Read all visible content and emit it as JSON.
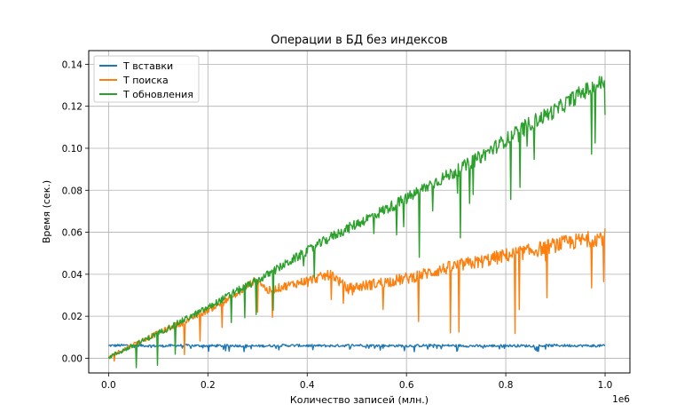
{
  "chart_data": {
    "type": "line",
    "title": "Операции в БД без индексов",
    "xlabel": "Количество записей (млн.)",
    "ylabel": "Время (сек.)",
    "x_offset_text": "1e6",
    "xlim": [
      -40000,
      1050000
    ],
    "ylim": [
      -0.007,
      0.1465
    ],
    "x_ticks": [
      0,
      0.2,
      0.4,
      0.6,
      0.8,
      1.0
    ],
    "x_tick_labels": [
      "0.0",
      "0.2",
      "0.4",
      "0.6",
      "0.8",
      "1.0"
    ],
    "y_ticks": [
      0,
      0.02,
      0.04,
      0.06,
      0.08,
      0.1,
      0.12,
      0.14
    ],
    "y_tick_labels": [
      "0.00",
      "0.02",
      "0.04",
      "0.06",
      "0.08",
      "0.10",
      "0.12",
      "0.14"
    ],
    "grid": true,
    "legend_position": "top-left",
    "series": [
      {
        "name": "T вставки",
        "color": "#1f77b4",
        "x": [
          0,
          50000,
          100000,
          150000,
          200000,
          250000,
          300000,
          350000,
          400000,
          450000,
          500000,
          550000,
          600000,
          650000,
          700000,
          750000,
          800000,
          850000,
          900000,
          950000,
          1000000
        ],
        "y": [
          0.006,
          0.0062,
          0.0058,
          0.0061,
          0.0059,
          0.006,
          0.0058,
          0.0061,
          0.006,
          0.0059,
          0.0062,
          0.006,
          0.0059,
          0.0061,
          0.006,
          0.0058,
          0.006,
          0.0059,
          0.0061,
          0.006,
          0.0059
        ]
      },
      {
        "name": "T поиска",
        "color": "#ff7f0e",
        "x": [
          0,
          50000,
          100000,
          150000,
          200000,
          250000,
          300000,
          320000,
          350000,
          400000,
          450000,
          480000,
          500000,
          550000,
          600000,
          650000,
          700000,
          750000,
          800000,
          850000,
          900000,
          950000,
          1000000
        ],
        "y": [
          0.0005,
          0.0065,
          0.012,
          0.017,
          0.023,
          0.029,
          0.038,
          0.032,
          0.034,
          0.037,
          0.04,
          0.033,
          0.034,
          0.036,
          0.038,
          0.041,
          0.044,
          0.046,
          0.049,
          0.051,
          0.054,
          0.056,
          0.058
        ]
      },
      {
        "name": "T обновления",
        "color": "#2ca02c",
        "x": [
          0,
          50000,
          100000,
          150000,
          200000,
          250000,
          300000,
          350000,
          400000,
          450000,
          500000,
          550000,
          600000,
          650000,
          700000,
          750000,
          800000,
          850000,
          900000,
          950000,
          1000000
        ],
        "y": [
          0.0005,
          0.006,
          0.012,
          0.018,
          0.024,
          0.031,
          0.037,
          0.044,
          0.051,
          0.058,
          0.064,
          0.07,
          0.076,
          0.083,
          0.089,
          0.096,
          0.104,
          0.112,
          0.118,
          0.126,
          0.132
        ]
      }
    ]
  }
}
